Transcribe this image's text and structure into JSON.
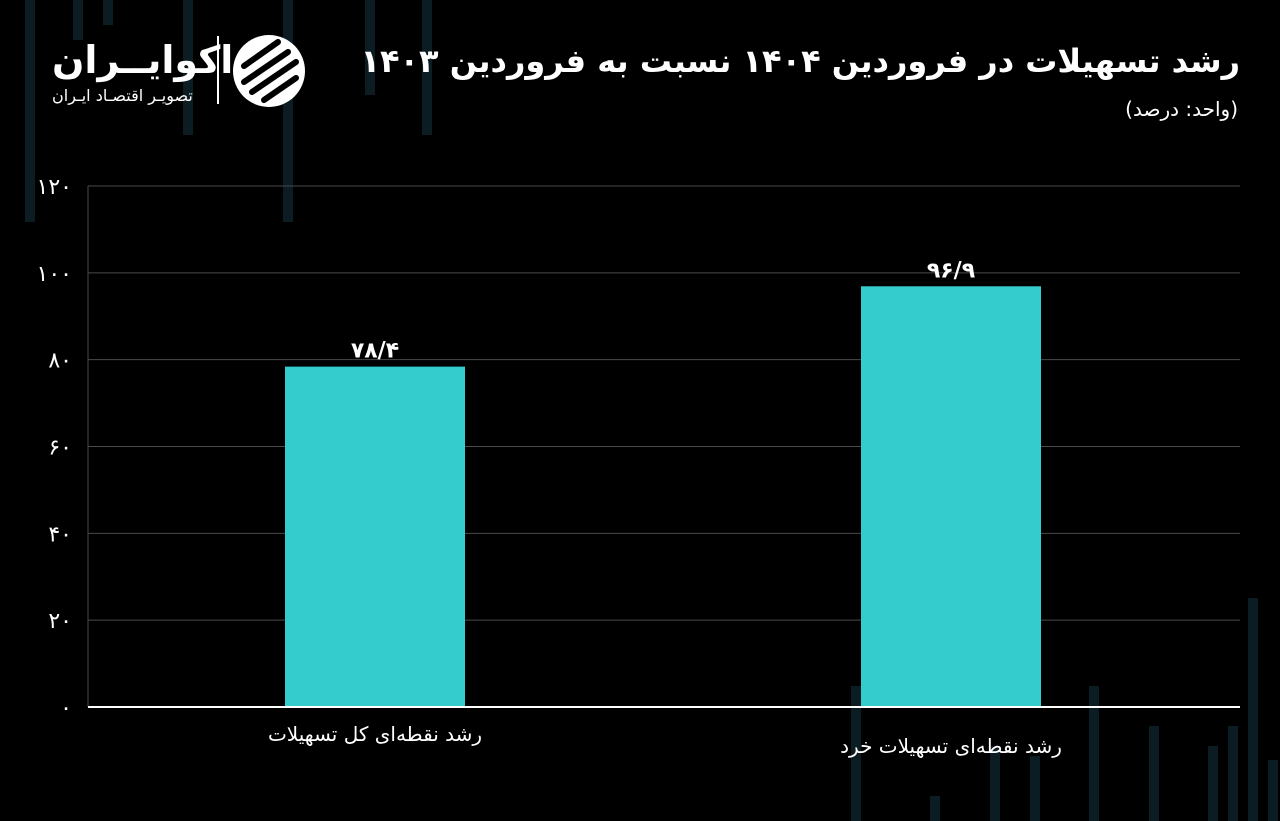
{
  "brand": {
    "name": "اکوایــران",
    "tagline": "تصویـر اقتصـاد ایـران"
  },
  "chart_data": {
    "type": "bar",
    "title": "رشد تسهیلات در فروردین ۱۴۰۴ نسبت به فروردین ۱۴۰۳",
    "subtitle": "(واحد: درصد)",
    "categories": [
      "رشد نقطه‌ای کل تسهیلات",
      "رشد نقطه‌ای تسهیلات خرد"
    ],
    "values": [
      78.4,
      96.9
    ],
    "data_labels": [
      "۷۸/۴",
      "۹۶/۹"
    ],
    "ylim": [
      0,
      120
    ],
    "yticks": [
      0,
      20,
      40,
      60,
      80,
      100,
      120
    ],
    "ytick_labels": [
      "۰",
      "۲۰",
      "۴۰",
      "۶۰",
      "۸۰",
      "۱۰۰",
      "۱۲۰"
    ],
    "grid": true,
    "colors": {
      "bar": "#35CCCE",
      "grid": "#4a4a4a",
      "axis": "#ffffff",
      "background": "#000000"
    }
  }
}
